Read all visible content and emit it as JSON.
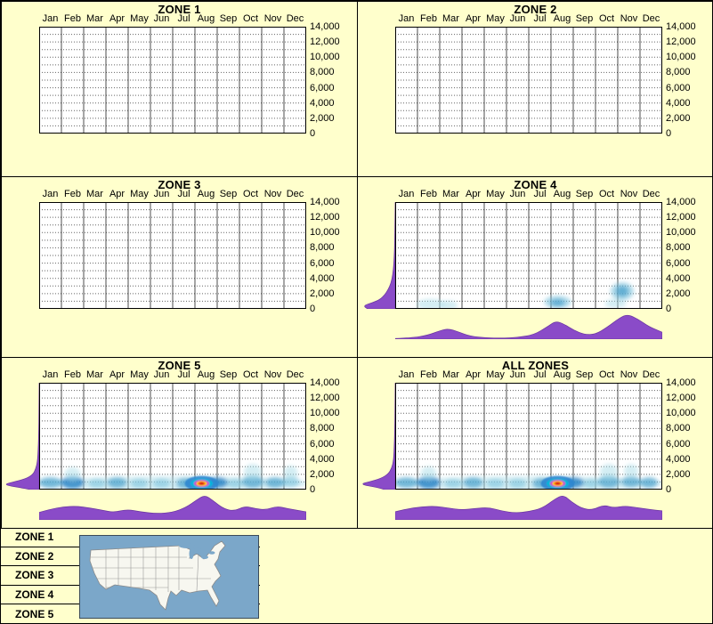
{
  "colors": {
    "background": "#FFFFCC",
    "plot_bg": "#FFFFFF",
    "density_fill": "#8A4BC8",
    "density_edge": "#6A35A0",
    "heat_faint": "#A8DCE8",
    "heat_light": "#79C2DC",
    "heat_medium": "#46A0CC",
    "heat_strong": "#1F7EC4",
    "hot_blue": "#2E86D0",
    "hot_cyan": "#00B8DC",
    "hot_magenta": "#D839C8",
    "hot_yellow": "#FFD800",
    "hot_orange": "#FF6A00",
    "hot_red": "#D40018",
    "map_water": "#7BA7C9",
    "map_land": "#F7F7F0"
  },
  "legend": {
    "items": [
      "ZONE 1",
      "ZONE 2",
      "ZONE 3",
      "ZONE 4",
      "ZONE 5"
    ]
  },
  "chart_data": {
    "type": "heatmap",
    "description": "Six monthly density panels (zones 1-5 and all zones combined) with purple marginal density curves and blue occurrence heat smudges",
    "months": [
      "Jan",
      "Feb",
      "Mar",
      "Apr",
      "May",
      "Jun",
      "Jul",
      "Aug",
      "Sep",
      "Oct",
      "Nov",
      "Dec"
    ],
    "y_ticks": [
      "14,000",
      "12,000",
      "10,000",
      "8,000",
      "6,000",
      "4,000",
      "2,000",
      "0"
    ],
    "y_range": [
      0,
      14000
    ],
    "panels": [
      {
        "title": "ZONE 1",
        "heat": [],
        "hot_spot": null,
        "left_density": null,
        "bottom_density": null
      },
      {
        "title": "ZONE 2",
        "heat": [],
        "hot_spot": null,
        "left_density": null,
        "bottom_density": null
      },
      {
        "title": "ZONE 3",
        "heat": [],
        "hot_spot": null,
        "left_density": null,
        "bottom_density": null
      },
      {
        "title": "ZONE 4",
        "heat": [
          {
            "m": 1.6,
            "v": 600,
            "rx": 16,
            "ry": 6,
            "tier": "faint"
          },
          {
            "m": 2.4,
            "v": 500,
            "rx": 10,
            "ry": 5,
            "tier": "faint"
          },
          {
            "m": 7.3,
            "v": 900,
            "rx": 15,
            "ry": 7,
            "tier": "light"
          },
          {
            "m": 7.3,
            "v": 800,
            "rx": 8,
            "ry": 4,
            "tier": "medium"
          },
          {
            "m": 10.2,
            "v": 2300,
            "rx": 13,
            "ry": 10,
            "tier": "light"
          },
          {
            "m": 10.2,
            "v": 2300,
            "rx": 7,
            "ry": 6,
            "tier": "medium"
          },
          {
            "m": 9.9,
            "v": 700,
            "rx": 12,
            "ry": 5,
            "tier": "faint"
          }
        ],
        "hot_spot": null,
        "left_density": [
          [
            0,
            0.78
          ],
          [
            0.03,
            0.9
          ],
          [
            0.06,
            0.62
          ],
          [
            0.09,
            0.42
          ],
          [
            0.13,
            0.3
          ],
          [
            0.18,
            0.2
          ],
          [
            0.24,
            0.12
          ],
          [
            0.32,
            0.07
          ],
          [
            0.42,
            0.04
          ],
          [
            0.55,
            0.02
          ],
          [
            0.75,
            0.01
          ],
          [
            1,
            0
          ]
        ],
        "bottom_density": [
          [
            0,
            0.03
          ],
          [
            0.06,
            0.05
          ],
          [
            0.12,
            0.15
          ],
          [
            0.17,
            0.35
          ],
          [
            0.2,
            0.42
          ],
          [
            0.24,
            0.28
          ],
          [
            0.28,
            0.12
          ],
          [
            0.34,
            0.05
          ],
          [
            0.4,
            0.04
          ],
          [
            0.46,
            0.07
          ],
          [
            0.52,
            0.18
          ],
          [
            0.57,
            0.5
          ],
          [
            0.6,
            0.72
          ],
          [
            0.63,
            0.62
          ],
          [
            0.67,
            0.35
          ],
          [
            0.71,
            0.18
          ],
          [
            0.75,
            0.2
          ],
          [
            0.79,
            0.45
          ],
          [
            0.84,
            0.85
          ],
          [
            0.87,
            1.0
          ],
          [
            0.91,
            0.8
          ],
          [
            0.95,
            0.5
          ],
          [
            1,
            0.28
          ]
        ]
      },
      {
        "title": "ZONE 5",
        "heat": [
          {
            "m": 6,
            "v": 800,
            "rx": 155,
            "ry": 8,
            "tier": "faint"
          },
          {
            "m": 0.5,
            "v": 900,
            "rx": 13,
            "ry": 6,
            "tier": "medium"
          },
          {
            "m": 1.5,
            "v": 900,
            "rx": 13,
            "ry": 7,
            "tier": "strong"
          },
          {
            "m": 1.5,
            "v": 2000,
            "rx": 9,
            "ry": 8,
            "tier": "faint"
          },
          {
            "m": 2.6,
            "v": 800,
            "rx": 10,
            "ry": 5,
            "tier": "light"
          },
          {
            "m": 3.5,
            "v": 900,
            "rx": 11,
            "ry": 6,
            "tier": "medium"
          },
          {
            "m": 4.5,
            "v": 800,
            "rx": 10,
            "ry": 5,
            "tier": "light"
          },
          {
            "m": 5.5,
            "v": 800,
            "rx": 10,
            "ry": 5,
            "tier": "light"
          },
          {
            "m": 6.6,
            "v": 800,
            "rx": 11,
            "ry": 6,
            "tier": "medium"
          },
          {
            "m": 8,
            "v": 900,
            "rx": 12,
            "ry": 6,
            "tier": "strong"
          },
          {
            "m": 8.8,
            "v": 800,
            "rx": 9,
            "ry": 5,
            "tier": "light"
          },
          {
            "m": 9.6,
            "v": 1000,
            "rx": 12,
            "ry": 7,
            "tier": "medium"
          },
          {
            "m": 9.6,
            "v": 2300,
            "rx": 10,
            "ry": 9,
            "tier": "faint"
          },
          {
            "m": 10.6,
            "v": 900,
            "rx": 11,
            "ry": 6,
            "tier": "medium"
          },
          {
            "m": 11.3,
            "v": 1000,
            "rx": 10,
            "ry": 6,
            "tier": "light"
          },
          {
            "m": 11.3,
            "v": 2200,
            "rx": 8,
            "ry": 8,
            "tier": "faint"
          }
        ],
        "hot_spot": {
          "m": 7.3,
          "v": 800
        },
        "left_density": [
          [
            0,
            0.25
          ],
          [
            0.02,
            0.55
          ],
          [
            0.045,
            1.0
          ],
          [
            0.07,
            0.75
          ],
          [
            0.1,
            0.38
          ],
          [
            0.14,
            0.18
          ],
          [
            0.19,
            0.1
          ],
          [
            0.26,
            0.05
          ],
          [
            0.36,
            0.03
          ],
          [
            0.5,
            0.015
          ],
          [
            0.75,
            0.005
          ],
          [
            1,
            0
          ]
        ],
        "bottom_density": [
          [
            0,
            0.3
          ],
          [
            0.04,
            0.42
          ],
          [
            0.09,
            0.52
          ],
          [
            0.14,
            0.55
          ],
          [
            0.19,
            0.48
          ],
          [
            0.24,
            0.38
          ],
          [
            0.28,
            0.3
          ],
          [
            0.33,
            0.42
          ],
          [
            0.38,
            0.32
          ],
          [
            0.44,
            0.25
          ],
          [
            0.5,
            0.3
          ],
          [
            0.55,
            0.5
          ],
          [
            0.59,
            0.8
          ],
          [
            0.62,
            1.0
          ],
          [
            0.65,
            0.78
          ],
          [
            0.69,
            0.45
          ],
          [
            0.73,
            0.35
          ],
          [
            0.77,
            0.55
          ],
          [
            0.81,
            0.45
          ],
          [
            0.85,
            0.4
          ],
          [
            0.89,
            0.55
          ],
          [
            0.93,
            0.45
          ],
          [
            0.97,
            0.38
          ],
          [
            1,
            0.32
          ]
        ]
      },
      {
        "title": "ALL ZONES",
        "heat": [
          {
            "m": 6,
            "v": 800,
            "rx": 155,
            "ry": 8,
            "tier": "faint"
          },
          {
            "m": 0.5,
            "v": 900,
            "rx": 13,
            "ry": 6,
            "tier": "medium"
          },
          {
            "m": 1.5,
            "v": 900,
            "rx": 13,
            "ry": 7,
            "tier": "strong"
          },
          {
            "m": 1.5,
            "v": 2100,
            "rx": 9,
            "ry": 8,
            "tier": "faint"
          },
          {
            "m": 2.6,
            "v": 800,
            "rx": 10,
            "ry": 5,
            "tier": "light"
          },
          {
            "m": 3.5,
            "v": 900,
            "rx": 11,
            "ry": 6,
            "tier": "medium"
          },
          {
            "m": 4.5,
            "v": 800,
            "rx": 10,
            "ry": 5,
            "tier": "light"
          },
          {
            "m": 5.5,
            "v": 800,
            "rx": 10,
            "ry": 5,
            "tier": "light"
          },
          {
            "m": 6.6,
            "v": 800,
            "rx": 11,
            "ry": 6,
            "tier": "medium"
          },
          {
            "m": 8,
            "v": 900,
            "rx": 12,
            "ry": 6,
            "tier": "strong"
          },
          {
            "m": 8.8,
            "v": 800,
            "rx": 9,
            "ry": 5,
            "tier": "light"
          },
          {
            "m": 9.6,
            "v": 1000,
            "rx": 12,
            "ry": 7,
            "tier": "medium"
          },
          {
            "m": 9.6,
            "v": 2300,
            "rx": 10,
            "ry": 9,
            "tier": "faint"
          },
          {
            "m": 10.6,
            "v": 1000,
            "rx": 11,
            "ry": 6,
            "tier": "medium"
          },
          {
            "m": 10.6,
            "v": 2400,
            "rx": 8,
            "ry": 8,
            "tier": "faint"
          },
          {
            "m": 11.4,
            "v": 900,
            "rx": 10,
            "ry": 6,
            "tier": "medium"
          }
        ],
        "hot_spot": {
          "m": 7.3,
          "v": 800
        },
        "left_density": [
          [
            0,
            0.3
          ],
          [
            0.02,
            0.5
          ],
          [
            0.05,
            1.0
          ],
          [
            0.075,
            0.7
          ],
          [
            0.105,
            0.4
          ],
          [
            0.145,
            0.2
          ],
          [
            0.2,
            0.1
          ],
          [
            0.27,
            0.05
          ],
          [
            0.38,
            0.03
          ],
          [
            0.55,
            0.015
          ],
          [
            0.8,
            0.005
          ],
          [
            1,
            0
          ]
        ],
        "bottom_density": [
          [
            0,
            0.33
          ],
          [
            0.05,
            0.45
          ],
          [
            0.1,
            0.52
          ],
          [
            0.15,
            0.55
          ],
          [
            0.2,
            0.47
          ],
          [
            0.25,
            0.4
          ],
          [
            0.3,
            0.46
          ],
          [
            0.35,
            0.5
          ],
          [
            0.4,
            0.35
          ],
          [
            0.45,
            0.28
          ],
          [
            0.5,
            0.33
          ],
          [
            0.55,
            0.46
          ],
          [
            0.6,
            0.85
          ],
          [
            0.63,
            1.0
          ],
          [
            0.66,
            0.72
          ],
          [
            0.7,
            0.45
          ],
          [
            0.74,
            0.4
          ],
          [
            0.78,
            0.6
          ],
          [
            0.82,
            0.48
          ],
          [
            0.86,
            0.56
          ],
          [
            0.9,
            0.5
          ],
          [
            0.95,
            0.42
          ],
          [
            1,
            0.36
          ]
        ]
      }
    ]
  }
}
